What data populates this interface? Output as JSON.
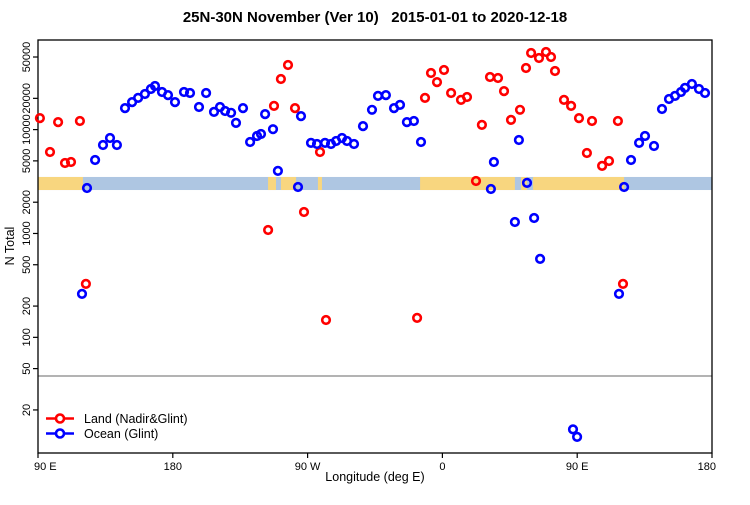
{
  "title": "25N-30N November (Ver 10)   2015-01-01 to 2020-12-18",
  "xlabel": "Longitude (deg E)",
  "ylabel": "N Total",
  "legend": [
    {
      "label": "Land (Nadir&Glint)",
      "color": "#ff0000"
    },
    {
      "label": "Ocean (Glint)",
      "color": "#0000ff"
    }
  ],
  "colors": {
    "land_points": "#ff0000",
    "ocean_points": "#0000ff",
    "band_land": "#f8d67f",
    "band_ocean": "#aec6e2",
    "threshold_line": "#b3b3b3",
    "axis": "#000000"
  },
  "chart_data": {
    "type": "scatter",
    "title": "25N-30N November (Ver 10)   2015-01-01 to 2020-12-18",
    "xlabel": "Longitude (deg E)",
    "ylabel": "N Total",
    "x_axis": {
      "note": "axis spans 450 deg starting at 90E, wrapping through 180, 90W, 0, 90E to 180",
      "span_deg": 450,
      "ticks_deg": [
        0,
        90,
        180,
        270,
        360,
        450
      ],
      "tick_labels": [
        "90 E",
        "180",
        "90 W",
        "0",
        "90 E",
        "180"
      ],
      "grid": false
    },
    "y_axis": {
      "scale": "log",
      "ylim": [
        7.7,
        72900
      ],
      "ticks": [
        20,
        50,
        100,
        200,
        500,
        1000,
        2000,
        5000,
        10000,
        20000,
        50000
      ],
      "tick_labels": [
        "20",
        "50",
        "100",
        "200",
        "500",
        "1000",
        "2000",
        "5000",
        "10000",
        "20000",
        "50000"
      ],
      "grid": false
    },
    "threshold_line": {
      "n": 42.5
    },
    "coastline_band": {
      "n_top": 3500,
      "n_bottom": 2620,
      "land_segments_deg": [
        [
          0,
          30
        ],
        [
          153.6,
          158.9
        ],
        [
          162.2,
          172.3
        ],
        [
          186.9,
          189.6
        ],
        [
          255.1,
          318.4
        ],
        [
          322.5,
          326.5
        ],
        [
          330.5,
          391.3
        ]
      ]
    },
    "legend_position": "bottom-left",
    "series": [
      {
        "name": "Land (Nadir&Glint)",
        "color": "#ff0000",
        "points_deg_n": [
          [
            1.3,
            12900
          ],
          [
            13.4,
            11800
          ],
          [
            28,
            12100
          ],
          [
            8,
            6090
          ],
          [
            18,
            4770
          ],
          [
            22,
            4880
          ],
          [
            166.9,
            41900
          ],
          [
            162.2,
            30700
          ],
          [
            157.6,
            16900
          ],
          [
            171.6,
            16100
          ],
          [
            188.3,
            6090
          ],
          [
            177.6,
            1610
          ],
          [
            153.6,
            1080
          ],
          [
            192.3,
            147
          ],
          [
            253.1,
            154
          ],
          [
            258.4,
            20200
          ],
          [
            262.4,
            35100
          ],
          [
            266.4,
            28700
          ],
          [
            271.1,
            37500
          ],
          [
            275.8,
            22500
          ],
          [
            282.4,
            19300
          ],
          [
            286.4,
            20600
          ],
          [
            296.4,
            11100
          ],
          [
            292.4,
            3200
          ],
          [
            301.8,
            32100
          ],
          [
            307.1,
            31400
          ],
          [
            311.1,
            23500
          ],
          [
            315.8,
            12400
          ],
          [
            321.8,
            15500
          ],
          [
            325.8,
            39200
          ],
          [
            329.2,
            54600
          ],
          [
            334.5,
            48900
          ],
          [
            339.2,
            55900
          ],
          [
            342.5,
            50000
          ],
          [
            345.2,
            36700
          ],
          [
            351.2,
            19300
          ],
          [
            355.9,
            16900
          ],
          [
            361.2,
            12900
          ],
          [
            366.5,
            5960
          ],
          [
            369.9,
            12100
          ],
          [
            376.6,
            4470
          ],
          [
            381.2,
            4990
          ],
          [
            387.2,
            12100
          ],
          [
            390.6,
            327
          ],
          [
            32,
            327
          ]
        ]
      },
      {
        "name": "Ocean (Glint)",
        "color": "#0000ff",
        "points_deg_n": [
          [
            38.1,
            5100
          ],
          [
            43.4,
            7110
          ],
          [
            48.1,
            8310
          ],
          [
            52.7,
            7110
          ],
          [
            58.1,
            16100
          ],
          [
            62.8,
            18400
          ],
          [
            66.8,
            20200
          ],
          [
            71.4,
            22000
          ],
          [
            75.4,
            24600
          ],
          [
            78.1,
            26300
          ],
          [
            82.8,
            23000
          ],
          [
            86.8,
            21500
          ],
          [
            91.5,
            18400
          ],
          [
            97.5,
            23000
          ],
          [
            101.5,
            22500
          ],
          [
            107.5,
            16500
          ],
          [
            112.2,
            22500
          ],
          [
            117.5,
            14800
          ],
          [
            121.5,
            16500
          ],
          [
            124.9,
            15100
          ],
          [
            128.9,
            14500
          ],
          [
            132.2,
            11600
          ],
          [
            136.9,
            16100
          ],
          [
            141.6,
            7600
          ],
          [
            146.2,
            8680
          ],
          [
            151.6,
            14100
          ],
          [
            156.9,
            10100
          ],
          [
            148.9,
            9080
          ],
          [
            175.6,
            13500
          ],
          [
            182.3,
            7440
          ],
          [
            186.3,
            7270
          ],
          [
            191.6,
            7440
          ],
          [
            195.6,
            7270
          ],
          [
            199,
            7770
          ],
          [
            203,
            8310
          ],
          [
            206.3,
            7770
          ],
          [
            211,
            7270
          ],
          [
            217,
            10800
          ],
          [
            223,
            15500
          ],
          [
            227,
            21100
          ],
          [
            232.3,
            21500
          ],
          [
            237.7,
            16100
          ],
          [
            241.7,
            17300
          ],
          [
            246.3,
            11800
          ],
          [
            251,
            12100
          ],
          [
            255.7,
            7600
          ],
          [
            321.1,
            7950
          ],
          [
            304.4,
            4880
          ],
          [
            405.3,
            8680
          ],
          [
            401.3,
            7440
          ],
          [
            411.3,
            6960
          ],
          [
            395.9,
            5100
          ],
          [
            416.6,
            15800
          ],
          [
            421.3,
            19700
          ],
          [
            425.3,
            21100
          ],
          [
            429.3,
            23000
          ],
          [
            432,
            25200
          ],
          [
            436.6,
            27500
          ],
          [
            441.3,
            24600
          ],
          [
            445.3,
            22500
          ],
          [
            318.4,
            1290
          ],
          [
            331.2,
            1410
          ],
          [
            335.2,
            569
          ],
          [
            387.9,
            262
          ],
          [
            29.4,
            262
          ],
          [
            32.7,
            2740
          ],
          [
            173.6,
            2800
          ],
          [
            160.2,
            4000
          ],
          [
            302.4,
            2680
          ],
          [
            326.5,
            3070
          ],
          [
            391.3,
            2800
          ],
          [
            357.2,
            13
          ],
          [
            359.9,
            11
          ]
        ]
      }
    ]
  }
}
